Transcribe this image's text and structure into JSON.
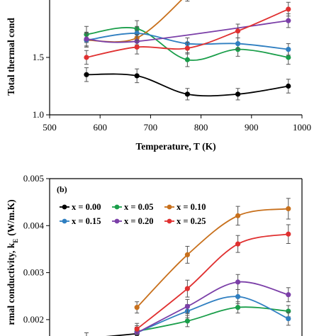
{
  "chart_data": [
    {
      "type": "line",
      "panel_label": "",
      "title": "",
      "xlabel": "Temperature,  T (K)",
      "ylabel": "Total thermal cond",
      "xlim": [
        500,
        1000
      ],
      "ylim": [
        1.0,
        2.0
      ],
      "x_ticks": [
        500,
        600,
        700,
        800,
        900,
        1000
      ],
      "y_ticks": [
        1.0,
        1.5
      ],
      "y_tick_labels": [
        "1.0",
        "1.5"
      ],
      "grid": false,
      "series": [
        {
          "color": "#000000",
          "x": [
            573,
            673,
            773,
            873,
            973
          ],
          "y": [
            1.35,
            1.34,
            1.18,
            1.18,
            1.25
          ],
          "err": [
            0.06,
            0.06,
            0.05,
            0.05,
            0.06
          ]
        },
        {
          "color": "#1a9e4a",
          "x": [
            573,
            673,
            773,
            873,
            973
          ],
          "y": [
            1.7,
            1.75,
            1.48,
            1.57,
            1.5
          ],
          "err": [
            0.07,
            0.07,
            0.06,
            0.06,
            0.06
          ]
        },
        {
          "color": "#c8701c",
          "x": [
            573,
            673,
            773
          ],
          "y": [
            1.65,
            1.67,
            2.05
          ],
          "err": [
            0.06,
            0.06,
            0.06
          ]
        },
        {
          "color": "#2f7fc1",
          "x": [
            573,
            673,
            773,
            873,
            973
          ],
          "y": [
            1.65,
            1.71,
            1.62,
            1.62,
            1.57
          ],
          "err": [
            0.06,
            0.06,
            0.05,
            0.05,
            0.05
          ]
        },
        {
          "color": "#7b3fa8",
          "x": [
            573,
            673,
            973
          ],
          "y": [
            1.66,
            1.64,
            1.82
          ],
          "err": [
            0.06,
            0.06,
            0.06
          ]
        },
        {
          "color": "#e03030",
          "x": [
            573,
            673,
            773,
            873,
            973
          ],
          "y": [
            1.5,
            1.59,
            1.58,
            1.73,
            1.92
          ],
          "err": [
            0.06,
            0.06,
            0.05,
            0.06,
            0.06
          ]
        }
      ]
    },
    {
      "type": "line",
      "panel_label": "(b)",
      "title": "",
      "xlabel": "",
      "ylabel": "rmal conductivity,  k",
      "ylabel_sub": "E",
      "ylabel_unit": "(W/m.K)",
      "xlim": [
        500,
        1000
      ],
      "ylim": [
        0.0018,
        0.005
      ],
      "y_ticks": [
        0.002,
        0.003,
        0.004,
        0.005
      ],
      "y_tick_labels": [
        "0.002",
        "0.003",
        "0.004",
        "0.005"
      ],
      "grid": false,
      "legend": {
        "placement": "top-left",
        "entries": [
          {
            "label": "x = 0.00",
            "color": "#000000"
          },
          {
            "label": "x = 0.05",
            "color": "#1a9e4a"
          },
          {
            "label": "x = 0.10",
            "color": "#c8701c"
          },
          {
            "label": "x = 0.15",
            "color": "#2f7fc1"
          },
          {
            "label": "x = 0.20",
            "color": "#7b3fa8"
          },
          {
            "label": "x = 0.25",
            "color": "#e03030"
          }
        ]
      },
      "series": [
        {
          "color": "#000000",
          "x": [
            573,
            673
          ],
          "y": [
            0.0016,
            0.0017
          ],
          "err": [
            0.00012,
            0.00012
          ]
        },
        {
          "color": "#1a9e4a",
          "x": [
            673,
            773,
            873,
            973
          ],
          "y": [
            0.00175,
            0.00197,
            0.00226,
            0.00218
          ],
          "err": [
            0.00012,
            0.00012,
            0.00012,
            0.00012
          ]
        },
        {
          "color": "#c8701c",
          "x": [
            673,
            773,
            873,
            973
          ],
          "y": [
            0.00226,
            0.00338,
            0.00421,
            0.00436
          ],
          "err": [
            0.00012,
            0.00018,
            0.0002,
            0.00022
          ]
        },
        {
          "color": "#2f7fc1",
          "x": [
            673,
            773,
            873,
            973
          ],
          "y": [
            0.00172,
            0.00218,
            0.00249,
            0.00202
          ],
          "err": [
            0.00012,
            0.00014,
            0.00015,
            0.00014
          ]
        },
        {
          "color": "#7b3fa8",
          "x": [
            673,
            773,
            873,
            973
          ],
          "y": [
            0.00172,
            0.00228,
            0.0028,
            0.00253
          ],
          "err": [
            0.00012,
            0.00015,
            0.00016,
            0.00015
          ]
        },
        {
          "color": "#e03030",
          "x": [
            673,
            773,
            873,
            973
          ],
          "y": [
            0.0018,
            0.00266,
            0.00361,
            0.00382
          ],
          "err": [
            0.00012,
            0.00018,
            0.00018,
            0.0002
          ]
        }
      ]
    }
  ]
}
